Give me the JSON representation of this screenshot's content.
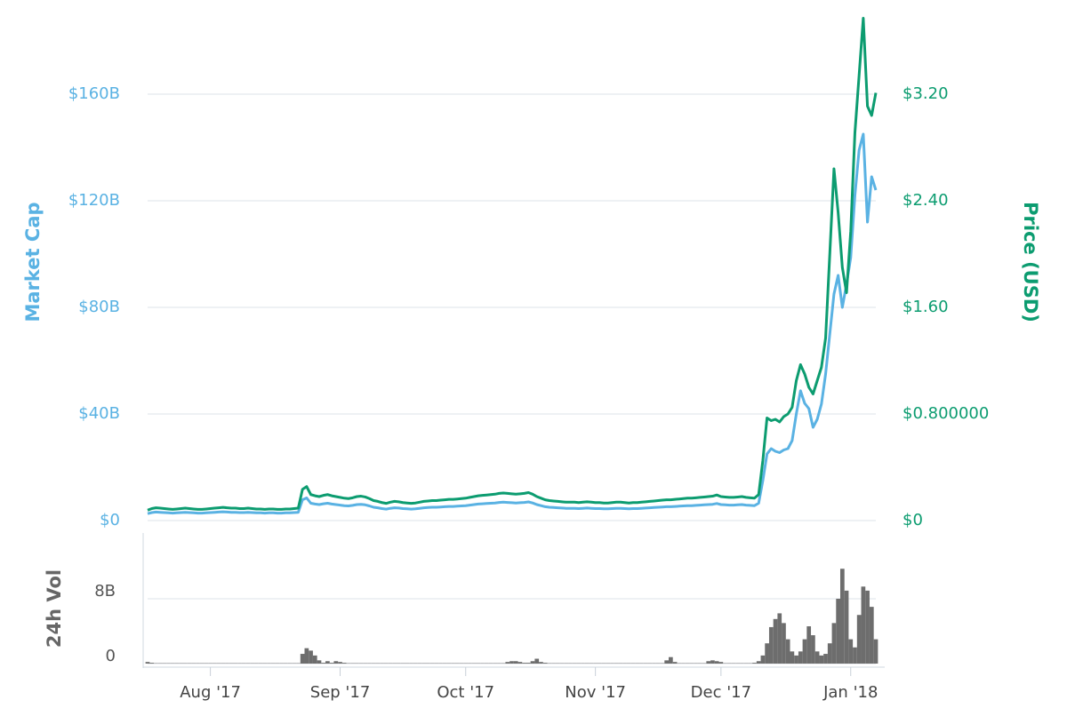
{
  "chart_data": [
    {
      "type": "line",
      "ylabel": "Market Cap",
      "y2label": "Price (USD)",
      "ylim": [
        0,
        190
      ],
      "yticks": [
        {
          "value": 0,
          "label": "$0"
        },
        {
          "value": 40,
          "label": "$40B"
        },
        {
          "value": 80,
          "label": "$80B"
        },
        {
          "value": 120,
          "label": "$120B"
        },
        {
          "value": 160,
          "label": "$160B"
        }
      ],
      "y2lim": [
        0,
        3.8
      ],
      "y2ticks": [
        {
          "value": 0,
          "label": "$0"
        },
        {
          "value": 0.8,
          "label": "$0.800000"
        },
        {
          "value": 1.6,
          "label": "$1.60"
        },
        {
          "value": 2.4,
          "label": "$2.40"
        },
        {
          "value": 3.2,
          "label": "$3.20"
        }
      ],
      "grid": true,
      "series": [
        {
          "color": "#5ab2e3",
          "values": [
            2.6,
            3.0,
            3.2,
            3.1,
            3.0,
            2.9,
            2.8,
            2.9,
            3.0,
            3.1,
            3.0,
            2.9,
            2.8,
            2.8,
            2.9,
            3.0,
            3.1,
            3.2,
            3.3,
            3.2,
            3.1,
            3.1,
            3.0,
            3.0,
            3.1,
            3.0,
            2.9,
            2.9,
            2.8,
            2.9,
            2.9,
            2.8,
            2.8,
            2.9,
            2.9,
            3.0,
            3.1,
            7.8,
            8.5,
            6.5,
            6.2,
            6.0,
            6.3,
            6.5,
            6.2,
            6.0,
            5.8,
            5.6,
            5.5,
            5.7,
            6.0,
            6.1,
            5.9,
            5.5,
            5.0,
            4.8,
            4.5,
            4.3,
            4.6,
            4.8,
            4.7,
            4.5,
            4.4,
            4.3,
            4.4,
            4.6,
            4.8,
            4.9,
            5.0,
            5.0,
            5.1,
            5.2,
            5.3,
            5.3,
            5.4,
            5.5,
            5.6,
            5.8,
            6.0,
            6.2,
            6.3,
            6.4,
            6.5,
            6.6,
            6.8,
            6.9,
            6.8,
            6.7,
            6.6,
            6.7,
            6.8,
            7.0,
            6.6,
            6.0,
            5.6,
            5.2,
            5.0,
            4.9,
            4.8,
            4.7,
            4.6,
            4.6,
            4.6,
            4.5,
            4.6,
            4.7,
            4.6,
            4.5,
            4.5,
            4.4,
            4.4,
            4.5,
            4.6,
            4.6,
            4.5,
            4.4,
            4.5,
            4.5,
            4.6,
            4.7,
            4.8,
            4.9,
            5.0,
            5.1,
            5.2,
            5.2,
            5.3,
            5.4,
            5.5,
            5.6,
            5.6,
            5.7,
            5.8,
            5.9,
            6.0,
            6.1,
            6.4,
            6.0,
            5.9,
            5.8,
            5.8,
            5.9,
            6.0,
            5.8,
            5.7,
            5.6,
            6.5,
            15,
            25,
            27,
            26,
            25.5,
            26.5,
            27,
            30,
            40,
            48.7,
            44,
            42,
            35,
            38,
            43.7,
            55,
            70,
            85,
            92,
            80,
            88.7,
            98.7,
            122,
            139,
            145,
            112,
            129,
            124
          ]
        },
        {
          "color": "#0c9c70",
          "axis": "y2",
          "values": [
            0.078,
            0.09,
            0.096,
            0.093,
            0.09,
            0.087,
            0.084,
            0.087,
            0.09,
            0.093,
            0.09,
            0.087,
            0.084,
            0.084,
            0.087,
            0.09,
            0.093,
            0.096,
            0.099,
            0.096,
            0.093,
            0.093,
            0.09,
            0.09,
            0.093,
            0.09,
            0.087,
            0.087,
            0.084,
            0.087,
            0.087,
            0.084,
            0.084,
            0.087,
            0.087,
            0.09,
            0.093,
            0.234,
            0.255,
            0.195,
            0.186,
            0.18,
            0.189,
            0.195,
            0.186,
            0.18,
            0.174,
            0.168,
            0.165,
            0.171,
            0.18,
            0.183,
            0.177,
            0.165,
            0.15,
            0.144,
            0.135,
            0.129,
            0.138,
            0.144,
            0.141,
            0.135,
            0.132,
            0.129,
            0.132,
            0.138,
            0.144,
            0.147,
            0.15,
            0.15,
            0.153,
            0.156,
            0.159,
            0.159,
            0.162,
            0.165,
            0.168,
            0.174,
            0.18,
            0.186,
            0.189,
            0.192,
            0.195,
            0.198,
            0.204,
            0.207,
            0.204,
            0.201,
            0.198,
            0.201,
            0.204,
            0.21,
            0.198,
            0.18,
            0.168,
            0.156,
            0.15,
            0.147,
            0.144,
            0.141,
            0.138,
            0.138,
            0.138,
            0.135,
            0.138,
            0.141,
            0.138,
            0.135,
            0.135,
            0.132,
            0.132,
            0.135,
            0.138,
            0.138,
            0.135,
            0.132,
            0.135,
            0.135,
            0.138,
            0.141,
            0.144,
            0.147,
            0.15,
            0.153,
            0.156,
            0.156,
            0.159,
            0.162,
            0.165,
            0.168,
            0.168,
            0.171,
            0.174,
            0.177,
            0.18,
            0.183,
            0.192,
            0.18,
            0.177,
            0.174,
            0.174,
            0.177,
            0.18,
            0.174,
            0.171,
            0.168,
            0.195,
            0.45,
            0.77,
            0.75,
            0.76,
            0.74,
            0.78,
            0.8,
            0.85,
            1.05,
            1.17,
            1.1,
            1.0,
            0.95,
            1.05,
            1.15,
            1.37,
            2.0,
            2.64,
            2.31,
            1.9,
            1.71,
            2.17,
            2.91,
            3.34,
            3.77,
            3.11,
            3.04,
            3.21
          ]
        }
      ]
    },
    {
      "type": "bar",
      "ylabel": "24h Vol",
      "color": "#6d6d6d",
      "ylim": [
        0,
        16
      ],
      "yticks": [
        0,
        {
          "value": 8,
          "label": "8B"
        }
      ],
      "grid": true,
      "categories": [
        null,
        null,
        null,
        null,
        null,
        null,
        null,
        null,
        null,
        null,
        null,
        null,
        null,
        null,
        null,
        "Aug '17",
        null,
        null,
        null,
        null,
        null,
        null,
        null,
        null,
        null,
        null,
        null,
        null,
        null,
        null,
        null,
        null,
        null,
        null,
        null,
        null,
        null,
        null,
        null,
        null,
        null,
        null,
        null,
        null,
        null,
        null,
        "Sep '17",
        null,
        null,
        null,
        null,
        null,
        null,
        null,
        null,
        null,
        null,
        null,
        null,
        null,
        null,
        null,
        null,
        null,
        null,
        null,
        null,
        null,
        null,
        null,
        null,
        null,
        null,
        null,
        null,
        null,
        "Oct '17",
        null,
        null,
        null,
        null,
        null,
        null,
        null,
        null,
        null,
        null,
        null,
        null,
        null,
        null,
        null,
        null,
        null,
        null,
        null,
        null,
        null,
        null,
        null,
        null,
        null,
        null,
        null,
        null,
        null,
        null,
        "Nov '17",
        null,
        null,
        null,
        null,
        null,
        null,
        null,
        null,
        null,
        null,
        null,
        null,
        null,
        null,
        null,
        null,
        null,
        null,
        null,
        null,
        null,
        null,
        null,
        null,
        null,
        null,
        null,
        null,
        null,
        "Dec '17",
        null,
        null,
        null,
        null,
        null,
        null,
        null,
        null,
        null,
        null,
        null,
        null,
        null,
        null,
        null,
        null,
        null,
        null,
        null,
        null,
        null,
        null,
        null,
        null,
        null,
        null,
        null,
        null,
        null,
        null,
        "Jan '18",
        null,
        null,
        null,
        null,
        null,
        null
      ],
      "values": [
        0.2,
        0.1,
        0.05,
        0.05,
        0.05,
        0.05,
        0.05,
        0.05,
        0.05,
        0.05,
        0.05,
        0.05,
        0.05,
        0.05,
        0.05,
        0.05,
        0.05,
        0.05,
        0.05,
        0.05,
        0.05,
        0.05,
        0.05,
        0.05,
        0.05,
        0.05,
        0.05,
        0.05,
        0.05,
        0.05,
        0.05,
        0.05,
        0.05,
        0.05,
        0.05,
        0.05,
        0.05,
        1.2,
        1.9,
        1.6,
        1.0,
        0.4,
        0.1,
        0.3,
        0.1,
        0.3,
        0.2,
        0.1,
        0.05,
        0.05,
        0.05,
        0.05,
        0.05,
        0.05,
        0.05,
        0.05,
        0.05,
        0.05,
        0.05,
        0.05,
        0.05,
        0.05,
        0.05,
        0.05,
        0.05,
        0.05,
        0.05,
        0.05,
        0.05,
        0.05,
        0.05,
        0.05,
        0.05,
        0.05,
        0.05,
        0.05,
        0.05,
        0.05,
        0.05,
        0.05,
        0.05,
        0.05,
        0.05,
        0.05,
        0.05,
        0.05,
        0.2,
        0.3,
        0.3,
        0.2,
        0.1,
        0.1,
        0.3,
        0.6,
        0.2,
        0.1,
        0.05,
        0.05,
        0.05,
        0.05,
        0.05,
        0.05,
        0.05,
        0.05,
        0.05,
        0.05,
        0.05,
        0.05,
        0.05,
        0.05,
        0.05,
        0.05,
        0.05,
        0.05,
        0.05,
        0.05,
        0.05,
        0.05,
        0.05,
        0.05,
        0.05,
        0.05,
        0.05,
        0.05,
        0.4,
        0.8,
        0.2,
        0.05,
        0.05,
        0.05,
        0.05,
        0.05,
        0.05,
        0.05,
        0.3,
        0.4,
        0.3,
        0.2,
        0.05,
        0.05,
        0.05,
        0.05,
        0.05,
        0.05,
        0.05,
        0.1,
        0.3,
        1.0,
        2.5,
        4.5,
        5.5,
        6.2,
        5.0,
        3.0,
        1.5,
        1.0,
        1.5,
        3.0,
        4.6,
        3.5,
        1.5,
        1.0,
        1.2,
        2.5,
        5.0,
        8.0,
        11.7,
        9.0,
        3.0,
        2.0,
        6.0,
        9.5,
        9.0,
        7.0,
        3.0
      ]
    }
  ]
}
